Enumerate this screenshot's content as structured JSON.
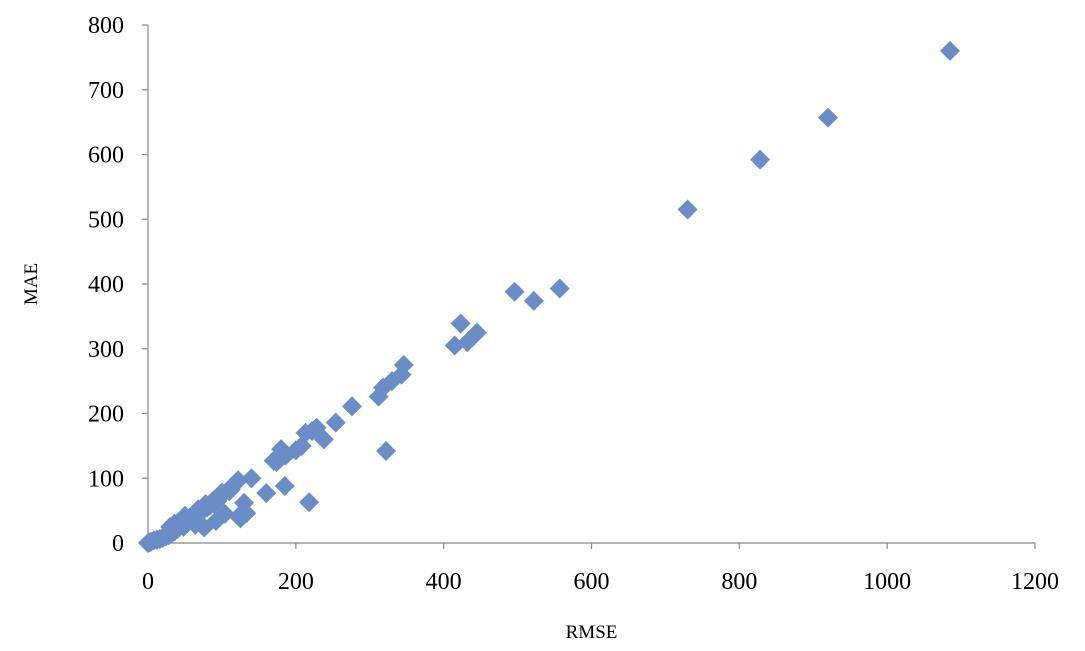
{
  "chart_data": {
    "type": "scatter",
    "title": "",
    "xlabel": "RMSE",
    "ylabel": "MAE",
    "xlim": [
      0,
      1200
    ],
    "ylim": [
      0,
      800
    ],
    "xticks": [
      0,
      200,
      400,
      600,
      800,
      1000,
      1200
    ],
    "yticks": [
      0,
      100,
      200,
      300,
      400,
      500,
      600,
      700,
      800
    ],
    "grid": false,
    "legend": "none",
    "marker": "diamond",
    "marker_color": "#6a8cc7",
    "series": [
      {
        "x": [
          1085,
          920,
          828,
          730,
          557,
          522,
          496,
          445,
          432,
          423,
          415,
          346,
          343,
          330,
          318,
          312,
          322,
          276,
          254,
          238,
          228,
          222,
          213,
          208,
          200,
          186,
          180,
          174,
          170,
          185,
          160,
          218,
          140,
          133,
          130,
          125,
          122,
          116,
          112,
          104,
          100,
          96,
          92,
          88,
          84,
          80,
          76,
          72,
          68,
          64,
          60,
          56,
          52,
          48,
          44,
          40,
          36,
          32,
          28,
          24,
          20,
          16,
          12,
          8,
          4,
          2,
          0,
          30,
          46,
          62,
          78,
          94,
          110,
          126,
          36,
          50,
          70,
          90
        ],
        "y": [
          760,
          657,
          592,
          515,
          393,
          374,
          388,
          325,
          310,
          339,
          305,
          275,
          260,
          250,
          240,
          226,
          142,
          211,
          186,
          160,
          178,
          173,
          170,
          150,
          143,
          135,
          145,
          125,
          127,
          88,
          77,
          63,
          100,
          46,
          62,
          38,
          97,
          90,
          83,
          45,
          78,
          70,
          34,
          65,
          58,
          55,
          24,
          48,
          52,
          28,
          40,
          35,
          38,
          25,
          30,
          22,
          18,
          15,
          12,
          10,
          8,
          6,
          5,
          4,
          2,
          1,
          0,
          25,
          28,
          45,
          60,
          65,
          80,
          45,
          30,
          42,
          50,
          60
        ]
      }
    ]
  }
}
